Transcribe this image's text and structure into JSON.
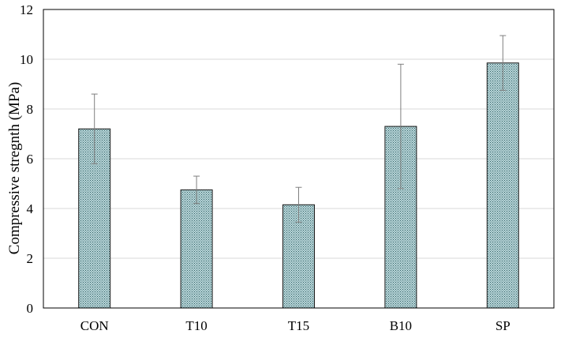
{
  "chart_data": {
    "type": "bar",
    "title": "",
    "xlabel": "",
    "ylabel": "Compressive stregnth (MPa)",
    "categories": [
      "CON",
      "T10",
      "T15",
      "B10",
      "SP"
    ],
    "values": [
      7.2,
      4.75,
      4.15,
      7.3,
      9.85
    ],
    "errors": [
      1.4,
      0.55,
      0.7,
      2.5,
      1.1
    ],
    "ylim": [
      0,
      12
    ],
    "yticks": [
      0,
      2,
      4,
      6,
      8,
      10,
      12
    ],
    "grid": true,
    "legend": "none",
    "colors": {
      "bar_fill": "#b9d6d8",
      "bar_pattern": "#2f5f66",
      "bar_stroke": "#1a1a1a",
      "grid": "#d9d9d9",
      "error_bar": "#7f7f7f",
      "axis": "#000000"
    }
  }
}
